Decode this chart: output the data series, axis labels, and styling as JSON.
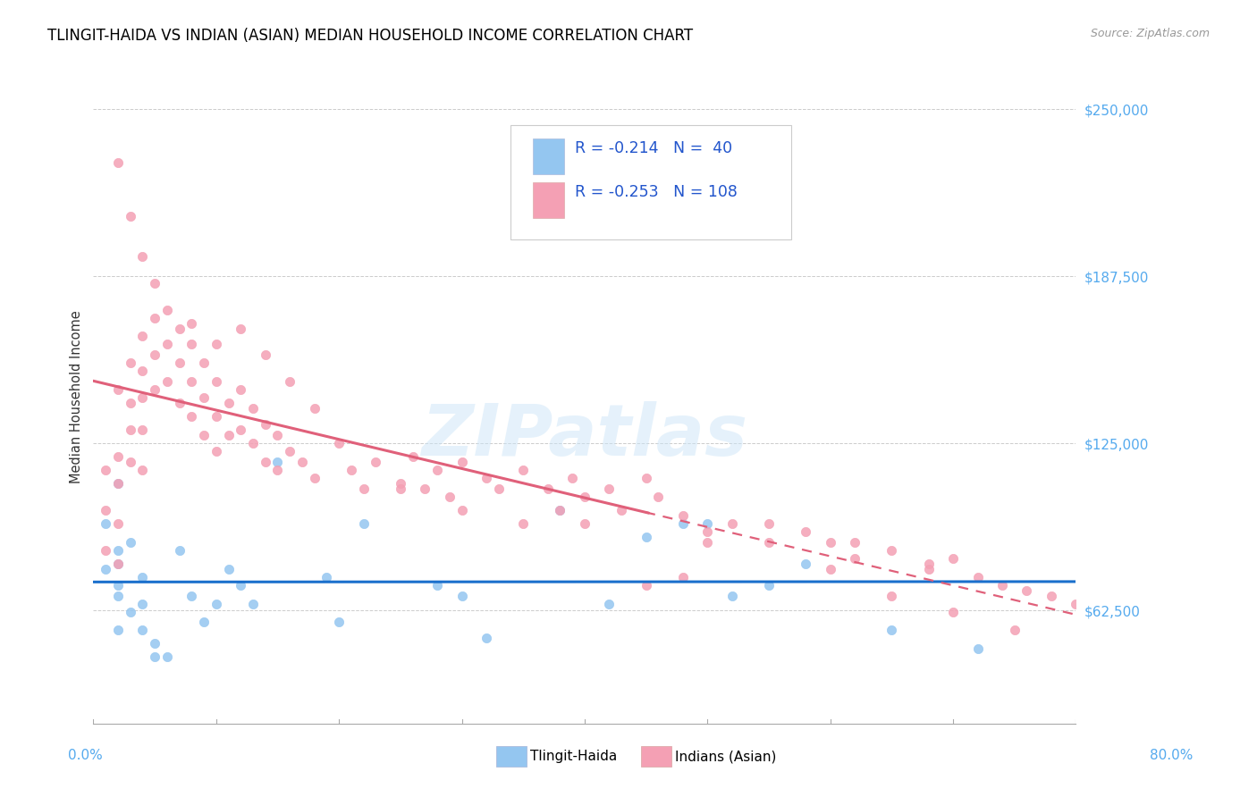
{
  "title": "TLINGIT-HAIDA VS INDIAN (ASIAN) MEDIAN HOUSEHOLD INCOME CORRELATION CHART",
  "source": "Source: ZipAtlas.com",
  "ylabel": "Median Household Income",
  "yticks": [
    62500,
    125000,
    187500,
    250000
  ],
  "ytick_labels": [
    "$62,500",
    "$125,000",
    "$187,500",
    "$250,000"
  ],
  "xmin": 0.0,
  "xmax": 0.8,
  "ymin": 20000,
  "ymax": 265000,
  "tlingit_R": "-0.214",
  "tlingit_N": "40",
  "indian_R": "-0.253",
  "indian_N": "108",
  "tlingit_color": "#94c6f0",
  "indian_color": "#f4a0b4",
  "tlingit_line_color": "#1a6fcc",
  "indian_line_color": "#e0607a",
  "tlingit_points_x": [
    0.01,
    0.01,
    0.02,
    0.02,
    0.02,
    0.02,
    0.02,
    0.02,
    0.03,
    0.03,
    0.04,
    0.04,
    0.04,
    0.05,
    0.05,
    0.06,
    0.07,
    0.08,
    0.09,
    0.1,
    0.11,
    0.12,
    0.13,
    0.15,
    0.19,
    0.2,
    0.22,
    0.28,
    0.3,
    0.32,
    0.38,
    0.42,
    0.45,
    0.48,
    0.5,
    0.52,
    0.55,
    0.58,
    0.65,
    0.72
  ],
  "tlingit_points_y": [
    95000,
    78000,
    110000,
    85000,
    80000,
    72000,
    68000,
    55000,
    62000,
    88000,
    75000,
    65000,
    55000,
    50000,
    45000,
    45000,
    85000,
    68000,
    58000,
    65000,
    78000,
    72000,
    65000,
    118000,
    75000,
    58000,
    95000,
    72000,
    68000,
    52000,
    100000,
    65000,
    90000,
    95000,
    95000,
    68000,
    72000,
    80000,
    55000,
    48000
  ],
  "indian_points_x": [
    0.01,
    0.01,
    0.01,
    0.02,
    0.02,
    0.02,
    0.02,
    0.02,
    0.03,
    0.03,
    0.03,
    0.03,
    0.04,
    0.04,
    0.04,
    0.04,
    0.04,
    0.05,
    0.05,
    0.05,
    0.06,
    0.06,
    0.06,
    0.07,
    0.07,
    0.07,
    0.08,
    0.08,
    0.08,
    0.09,
    0.09,
    0.09,
    0.1,
    0.1,
    0.1,
    0.11,
    0.11,
    0.12,
    0.12,
    0.13,
    0.13,
    0.14,
    0.14,
    0.15,
    0.15,
    0.16,
    0.17,
    0.18,
    0.2,
    0.21,
    0.22,
    0.23,
    0.25,
    0.26,
    0.27,
    0.28,
    0.29,
    0.3,
    0.32,
    0.33,
    0.35,
    0.37,
    0.38,
    0.39,
    0.4,
    0.42,
    0.43,
    0.45,
    0.46,
    0.48,
    0.5,
    0.52,
    0.55,
    0.58,
    0.6,
    0.62,
    0.65,
    0.68,
    0.7,
    0.72,
    0.74,
    0.76,
    0.78,
    0.8,
    0.02,
    0.03,
    0.04,
    0.05,
    0.08,
    0.1,
    0.12,
    0.14,
    0.16,
    0.18,
    0.25,
    0.3,
    0.35,
    0.4,
    0.5,
    0.6,
    0.65,
    0.7,
    0.75,
    0.48,
    0.55,
    0.62,
    0.68,
    0.45
  ],
  "indian_points_y": [
    115000,
    100000,
    85000,
    145000,
    120000,
    110000,
    95000,
    80000,
    155000,
    140000,
    130000,
    118000,
    165000,
    152000,
    142000,
    130000,
    115000,
    172000,
    158000,
    145000,
    175000,
    162000,
    148000,
    168000,
    155000,
    140000,
    162000,
    148000,
    135000,
    155000,
    142000,
    128000,
    148000,
    135000,
    122000,
    140000,
    128000,
    145000,
    130000,
    138000,
    125000,
    132000,
    118000,
    128000,
    115000,
    122000,
    118000,
    112000,
    125000,
    115000,
    108000,
    118000,
    110000,
    120000,
    108000,
    115000,
    105000,
    118000,
    112000,
    108000,
    115000,
    108000,
    100000,
    112000,
    105000,
    108000,
    100000,
    112000,
    105000,
    98000,
    92000,
    95000,
    88000,
    92000,
    88000,
    82000,
    85000,
    78000,
    82000,
    75000,
    72000,
    70000,
    68000,
    65000,
    230000,
    210000,
    195000,
    185000,
    170000,
    162000,
    168000,
    158000,
    148000,
    138000,
    108000,
    100000,
    95000,
    95000,
    88000,
    78000,
    68000,
    62000,
    55000,
    75000,
    95000,
    88000,
    80000,
    72000
  ]
}
